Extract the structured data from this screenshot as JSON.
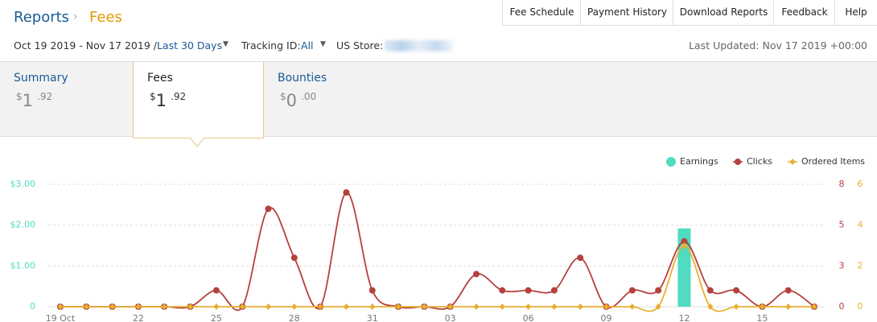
{
  "header": {
    "breadcrumb": [
      "Reports",
      "Fees"
    ],
    "buttons": [
      "Fee Schedule",
      "Payment History",
      "Download Reports",
      "Feedback",
      "Help"
    ]
  },
  "filters": {
    "date_range": "Oct 19 2019 - Nov 17 2019 /",
    "period": "Last 30 Days",
    "tracking_label": "Tracking ID:",
    "tracking_value": "All",
    "store_label": "US Store:",
    "last_updated": "Last Updated: Nov 17 2019 +00:00"
  },
  "tabs": [
    {
      "name": "Summary",
      "currency": "$",
      "whole": "1",
      "fraction": ".92"
    },
    {
      "name": "Fees",
      "currency": "$",
      "whole": "1",
      "fraction": ".92"
    },
    {
      "name": "Bounties",
      "currency": "$",
      "whole": "0",
      "fraction": ".00"
    }
  ],
  "chart_data": {
    "type": "combo",
    "categories": [
      "19 Oct",
      null,
      null,
      "22",
      null,
      null,
      "25",
      null,
      null,
      "28",
      null,
      null,
      "31",
      null,
      null,
      "03",
      null,
      null,
      "06",
      null,
      null,
      "09",
      null,
      null,
      "12",
      null,
      null,
      "15",
      null,
      null
    ],
    "series": [
      {
        "name": "Earnings",
        "type": "bar",
        "axis": "y",
        "color": "#4fdcc0",
        "values": [
          0,
          0,
          0,
          0,
          0,
          0,
          0,
          0,
          0,
          0,
          0,
          0,
          0,
          0,
          0,
          0,
          0,
          0,
          0,
          0,
          0,
          0,
          0,
          0,
          1.92,
          0,
          0,
          0,
          0,
          0
        ]
      },
      {
        "name": "Clicks",
        "type": "line",
        "axis": "y2",
        "color": "#b5403d",
        "values": [
          0,
          0,
          0,
          0,
          0,
          0,
          1,
          0,
          6,
          3,
          0,
          7,
          1,
          0,
          0,
          0,
          2,
          1,
          1,
          1,
          3,
          0,
          1,
          1,
          4,
          1,
          1,
          0,
          1,
          0
        ]
      },
      {
        "name": "Ordered Items",
        "type": "line",
        "axis": "y3",
        "color": "#e8b030",
        "values": [
          0,
          0,
          0,
          0,
          0,
          0,
          0,
          0,
          0,
          0,
          0,
          0,
          0,
          0,
          0,
          0,
          0,
          0,
          0,
          0,
          0,
          0,
          0,
          0,
          3,
          0,
          0,
          0,
          0,
          0
        ]
      }
    ],
    "ylim": [
      0,
      3
    ],
    "yticks": [
      0,
      {
        "value": 1,
        "label": "$1.00"
      },
      {
        "value": 2,
        "label": "$2.00"
      },
      {
        "value": 3,
        "label": "$3.00"
      }
    ],
    "y2lim": [
      0,
      7.5
    ],
    "y2ticks": [
      0,
      {
        "value": 2.5,
        "label": "3"
      },
      5,
      {
        "value": 7.5,
        "label": "8"
      }
    ],
    "y3lim": [
      0,
      6
    ],
    "y3ticks": [
      0,
      2,
      4,
      6
    ],
    "grid": true,
    "legend": "top-right"
  }
}
